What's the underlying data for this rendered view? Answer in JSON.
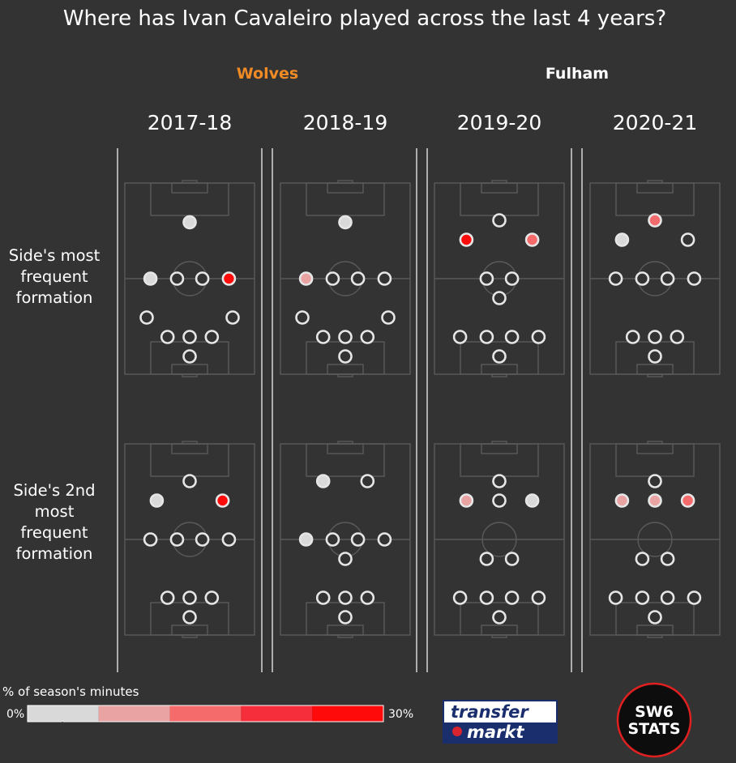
{
  "title": "Where has Ivan Cavaleiro played across the last 4 years?",
  "teams": [
    {
      "name": "Wolves",
      "color": "#f08a24"
    },
    {
      "name": "Fulham",
      "color": "#ffffff"
    }
  ],
  "row_labels": [
    [
      "Side's most",
      "frequent",
      "formation"
    ],
    [
      "Side's 2nd",
      "most",
      "frequent",
      "formation"
    ]
  ],
  "legend": {
    "title": "% of season's minutes",
    "min_label": "0%",
    "max_label": "30%",
    "colors": [
      "#d9d9d9",
      "#eaa3a3",
      "#f56a6a",
      "#f62d3a",
      "#ff0a0a"
    ]
  },
  "logos": {
    "transfermarkt": [
      "transfer",
      "markt"
    ],
    "sw6": [
      "SW6",
      "STATS"
    ]
  },
  "chart_data": {
    "type": "heatmap",
    "description_unit": "percent of season's minutes played in each formation position (0 = not played)",
    "scale": [
      0,
      30
    ],
    "seasons": [
      "2017-18",
      "2018-19",
      "2019-20",
      "2020-21"
    ],
    "season_team": [
      "Wolves",
      "Wolves",
      "Fulham",
      "Fulham"
    ],
    "panels": [
      {
        "season": "2017-18",
        "rank": 1,
        "positions": [
          {
            "x": 0,
            "y": 0.58,
            "value": 3
          },
          {
            "x": -0.62,
            "y": 0.0,
            "value": 3
          },
          {
            "x": -0.2,
            "y": 0.0,
            "value": 0
          },
          {
            "x": 0.2,
            "y": 0.0,
            "value": 0
          },
          {
            "x": 0.62,
            "y": 0.0,
            "value": 28
          },
          {
            "x": -0.68,
            "y": -0.4,
            "value": 0
          },
          {
            "x": 0.68,
            "y": -0.4,
            "value": 0
          },
          {
            "x": -0.35,
            "y": -0.6,
            "value": 0
          },
          {
            "x": 0,
            "y": -0.6,
            "value": 0
          },
          {
            "x": 0.35,
            "y": -0.6,
            "value": 0
          },
          {
            "x": 0,
            "y": -0.8,
            "value": 0
          }
        ]
      },
      {
        "season": "2018-19",
        "rank": 1,
        "positions": [
          {
            "x": 0,
            "y": 0.58,
            "value": 3
          },
          {
            "x": -0.62,
            "y": 0.0,
            "value": 9
          },
          {
            "x": -0.2,
            "y": 0.0,
            "value": 0
          },
          {
            "x": 0.2,
            "y": 0.0,
            "value": 0
          },
          {
            "x": 0.62,
            "y": 0.0,
            "value": 0
          },
          {
            "x": -0.68,
            "y": -0.4,
            "value": 0
          },
          {
            "x": 0.68,
            "y": -0.4,
            "value": 0
          },
          {
            "x": -0.35,
            "y": -0.6,
            "value": 0
          },
          {
            "x": 0,
            "y": -0.6,
            "value": 0
          },
          {
            "x": 0.35,
            "y": -0.6,
            "value": 0
          },
          {
            "x": 0,
            "y": -0.8,
            "value": 0
          }
        ]
      },
      {
        "season": "2019-20",
        "rank": 1,
        "positions": [
          {
            "x": 0,
            "y": 0.6,
            "value": 0
          },
          {
            "x": -0.52,
            "y": 0.4,
            "value": 28
          },
          {
            "x": 0.52,
            "y": 0.4,
            "value": 15
          },
          {
            "x": -0.2,
            "y": 0.0,
            "value": 0
          },
          {
            "x": 0.2,
            "y": 0.0,
            "value": 0
          },
          {
            "x": 0,
            "y": -0.2,
            "value": 0
          },
          {
            "x": -0.62,
            "y": -0.6,
            "value": 0
          },
          {
            "x": -0.2,
            "y": -0.6,
            "value": 0
          },
          {
            "x": 0.2,
            "y": -0.6,
            "value": 0
          },
          {
            "x": 0.62,
            "y": -0.6,
            "value": 0
          },
          {
            "x": 0,
            "y": -0.8,
            "value": 0
          }
        ]
      },
      {
        "season": "2020-21",
        "rank": 1,
        "positions": [
          {
            "x": 0,
            "y": 0.6,
            "value": 15
          },
          {
            "x": -0.52,
            "y": 0.4,
            "value": 3
          },
          {
            "x": 0.52,
            "y": 0.4,
            "value": 0
          },
          {
            "x": -0.62,
            "y": 0.0,
            "value": 0
          },
          {
            "x": -0.2,
            "y": 0.0,
            "value": 0
          },
          {
            "x": 0.2,
            "y": 0.0,
            "value": 0
          },
          {
            "x": 0.62,
            "y": 0.0,
            "value": 0
          },
          {
            "x": -0.35,
            "y": -0.6,
            "value": 0
          },
          {
            "x": 0,
            "y": -0.6,
            "value": 0
          },
          {
            "x": 0.35,
            "y": -0.6,
            "value": 0
          },
          {
            "x": 0,
            "y": -0.8,
            "value": 0
          }
        ]
      },
      {
        "season": "2017-18",
        "rank": 2,
        "positions": [
          {
            "x": 0,
            "y": 0.6,
            "value": 0
          },
          {
            "x": -0.52,
            "y": 0.4,
            "value": 3
          },
          {
            "x": 0.52,
            "y": 0.4,
            "value": 27
          },
          {
            "x": -0.62,
            "y": 0.0,
            "value": 0
          },
          {
            "x": -0.2,
            "y": 0.0,
            "value": 0
          },
          {
            "x": 0.2,
            "y": 0.0,
            "value": 0
          },
          {
            "x": 0.62,
            "y": 0.0,
            "value": 0
          },
          {
            "x": -0.35,
            "y": -0.6,
            "value": 0
          },
          {
            "x": 0,
            "y": -0.6,
            "value": 0
          },
          {
            "x": 0.35,
            "y": -0.6,
            "value": 0
          },
          {
            "x": 0,
            "y": -0.8,
            "value": 0
          }
        ]
      },
      {
        "season": "2018-19",
        "rank": 2,
        "positions": [
          {
            "x": -0.35,
            "y": 0.6,
            "value": 3
          },
          {
            "x": 0.35,
            "y": 0.6,
            "value": 0
          },
          {
            "x": -0.62,
            "y": 0.0,
            "value": 3
          },
          {
            "x": -0.2,
            "y": 0.0,
            "value": 0
          },
          {
            "x": 0.2,
            "y": 0.0,
            "value": 0
          },
          {
            "x": 0.62,
            "y": 0.0,
            "value": 0
          },
          {
            "x": 0,
            "y": -0.2,
            "value": 0
          },
          {
            "x": -0.35,
            "y": -0.6,
            "value": 0
          },
          {
            "x": 0,
            "y": -0.6,
            "value": 0
          },
          {
            "x": 0.35,
            "y": -0.6,
            "value": 0
          },
          {
            "x": 0,
            "y": -0.8,
            "value": 0
          }
        ]
      },
      {
        "season": "2019-20",
        "rank": 2,
        "positions": [
          {
            "x": 0,
            "y": 0.6,
            "value": 0
          },
          {
            "x": -0.52,
            "y": 0.4,
            "value": 9
          },
          {
            "x": 0,
            "y": 0.4,
            "value": 0
          },
          {
            "x": 0.52,
            "y": 0.4,
            "value": 3
          },
          {
            "x": -0.2,
            "y": -0.2,
            "value": 0
          },
          {
            "x": 0.2,
            "y": -0.2,
            "value": 0
          },
          {
            "x": -0.62,
            "y": -0.6,
            "value": 0
          },
          {
            "x": -0.2,
            "y": -0.6,
            "value": 0
          },
          {
            "x": 0.2,
            "y": -0.6,
            "value": 0
          },
          {
            "x": 0.62,
            "y": -0.6,
            "value": 0
          },
          {
            "x": 0,
            "y": -0.8,
            "value": 0
          }
        ]
      },
      {
        "season": "2020-21",
        "rank": 2,
        "positions": [
          {
            "x": 0,
            "y": 0.6,
            "value": 0
          },
          {
            "x": -0.52,
            "y": 0.4,
            "value": 9
          },
          {
            "x": 0,
            "y": 0.4,
            "value": 9
          },
          {
            "x": 0.52,
            "y": 0.4,
            "value": 15
          },
          {
            "x": -0.2,
            "y": -0.2,
            "value": 0
          },
          {
            "x": 0.2,
            "y": -0.2,
            "value": 0
          },
          {
            "x": -0.62,
            "y": -0.6,
            "value": 0
          },
          {
            "x": -0.2,
            "y": -0.6,
            "value": 0
          },
          {
            "x": 0.2,
            "y": -0.6,
            "value": 0
          },
          {
            "x": 0.62,
            "y": -0.6,
            "value": 0
          },
          {
            "x": 0,
            "y": -0.8,
            "value": 0
          }
        ]
      }
    ]
  }
}
